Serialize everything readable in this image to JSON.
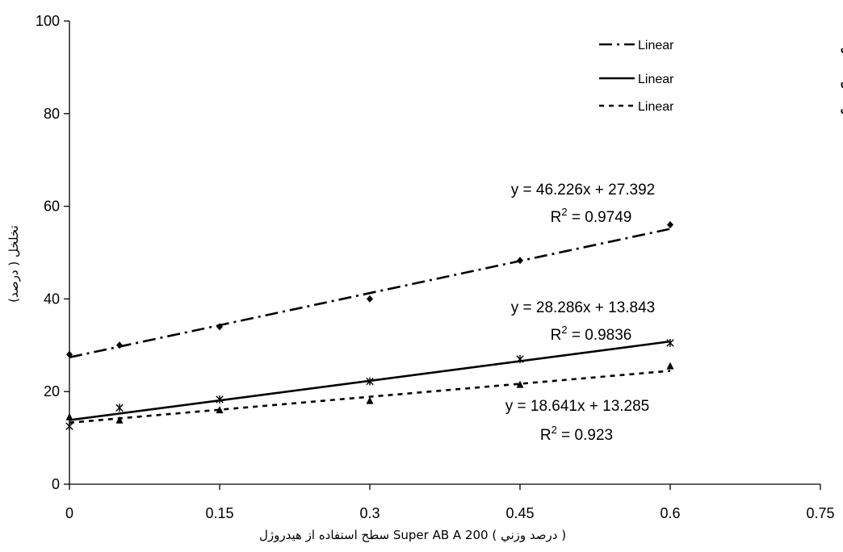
{
  "chart_data": {
    "type": "scatter",
    "xlabel": "سطح استفاده از هيدروژل Super AB A 200 ( درصد وزني )",
    "ylabel": "تخلخل ( درصد)",
    "xlim": [
      0,
      0.75
    ],
    "ylim": [
      0,
      100
    ],
    "x_ticks": [
      "0",
      "0.15",
      "0.3",
      "0.45",
      "0.6",
      "0.75"
    ],
    "y_ticks": [
      "0",
      "20",
      "40",
      "60",
      "80",
      "100"
    ],
    "x_tick_values": [
      0,
      0.15,
      0.3,
      0.45,
      0.6,
      0.75
    ],
    "y_tick_values": [
      0,
      20,
      40,
      60,
      80,
      100
    ],
    "grid": false,
    "legend_position": "top-right",
    "series": [
      {
        "name": "تخلخل کل",
        "trend_label": "Linear",
        "marker": "diamond",
        "line_style": "dash-dot",
        "x": [
          0,
          0.05,
          0.15,
          0.3,
          0.45,
          0.6
        ],
        "y": [
          28,
          30,
          34,
          40,
          48.3,
          56
        ],
        "slope": 46.226,
        "intercept": 27.392,
        "equation": "y = 46.226x + 27.392",
        "r2_text": " = 0.9749"
      },
      {
        "name": "تخلخل موين",
        "trend_label": "Linear",
        "marker": "star",
        "line_style": "solid",
        "x": [
          0,
          0.05,
          0.15,
          0.3,
          0.45,
          0.6
        ],
        "y": [
          12.5,
          16.5,
          18.3,
          22.2,
          27,
          30.5
        ],
        "slope": 28.286,
        "intercept": 13.843,
        "equation": "y = 28.286x + 13.843",
        "r2_text": " = 0.9836"
      },
      {
        "name": "تخلخل تهويه اي",
        "trend_label": "Linear",
        "marker": "triangle",
        "line_style": "dotted",
        "x": [
          0,
          0.05,
          0.15,
          0.3,
          0.45,
          0.6
        ],
        "y": [
          14.5,
          13.8,
          16,
          18,
          21.5,
          25.5
        ],
        "slope": 18.641,
        "intercept": 13.285,
        "equation": "y = 18.641x + 13.285",
        "r2_text": " = 0.923"
      }
    ]
  }
}
